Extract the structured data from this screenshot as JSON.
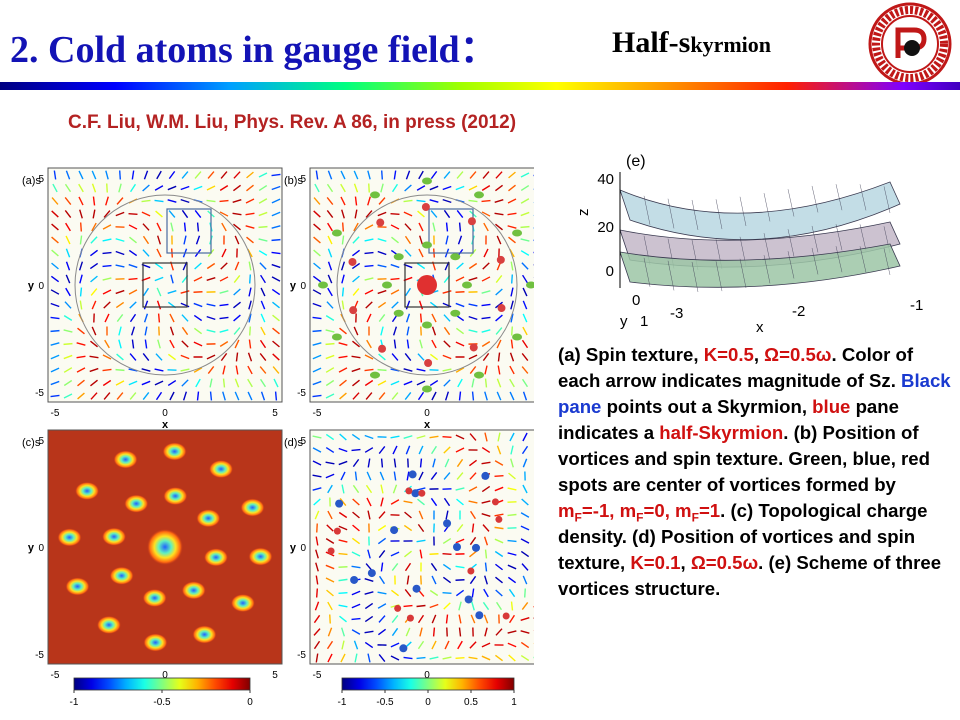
{
  "header": {
    "title": "2. Cold atoms in gauge field：",
    "subtitle_a": "Half-s",
    "subtitle_b": "kyrmion"
  },
  "citation": "C.F. Liu, W.M. Liu, Phys. Rev. A 86, in press (2012)",
  "figure": {
    "panel_labels": [
      "(a)s",
      "(b)s",
      "(c)s",
      "(d)s"
    ],
    "axis_x_label": "x",
    "axis_y_label": "y",
    "ticks_x": [
      "-5",
      "0",
      "5"
    ],
    "ticks_y": [
      "5",
      "0",
      "-5"
    ],
    "colorbar_left_ticks": [
      "-1",
      "-0.5",
      "0"
    ],
    "colorbar_right_ticks": [
      "-1",
      "-0.5",
      "0",
      "0.5",
      "1"
    ],
    "panel3d": {
      "label": "(e)",
      "z_label": "z",
      "z_ticks": [
        "40",
        "20",
        "0"
      ],
      "y_label": "y",
      "y_ticks": [
        "0",
        "1"
      ],
      "x_label": "x",
      "x_ticks": [
        "-3",
        "-2",
        "-1"
      ]
    }
  },
  "caption": {
    "p1": "(a) Spin texture, ",
    "k1": "K=0.5",
    "p2": ", ",
    "o1": "Ω=0.5ω",
    "p3": ". Color of each arrow indicates magnitude of Sz. ",
    "black_pane": "Black pane",
    "p4": " points out a Skyrmion, ",
    "blue_word": "blue",
    "p5": " pane indicates a ",
    "half_sky": "half-Skyrmion",
    "p6": ". (b) Position of vortices and spin texture. Green, blue, red spots are center of vortices formed by ",
    "mf1": "m",
    "mf1_sub": "F",
    "mf1_val": "=-1",
    "p7": ", m",
    "mf2_sub": "F",
    "mf2_val": "=0",
    "p8": ", m",
    "mf3_sub": "F",
    "mf3_val": "=1",
    "p9": ". (c) Topological charge density. (d) Position of vortices and spin texture, ",
    "k2": "K=0.1",
    "p10": ", ",
    "o2": "Ω=0.5ω",
    "p11": ". (e) Scheme of three vortices structure."
  },
  "colors": {
    "title": "#1313b5",
    "citation": "#b42222",
    "caption_red": "#d01010",
    "caption_blue": "#1a3ad0"
  }
}
